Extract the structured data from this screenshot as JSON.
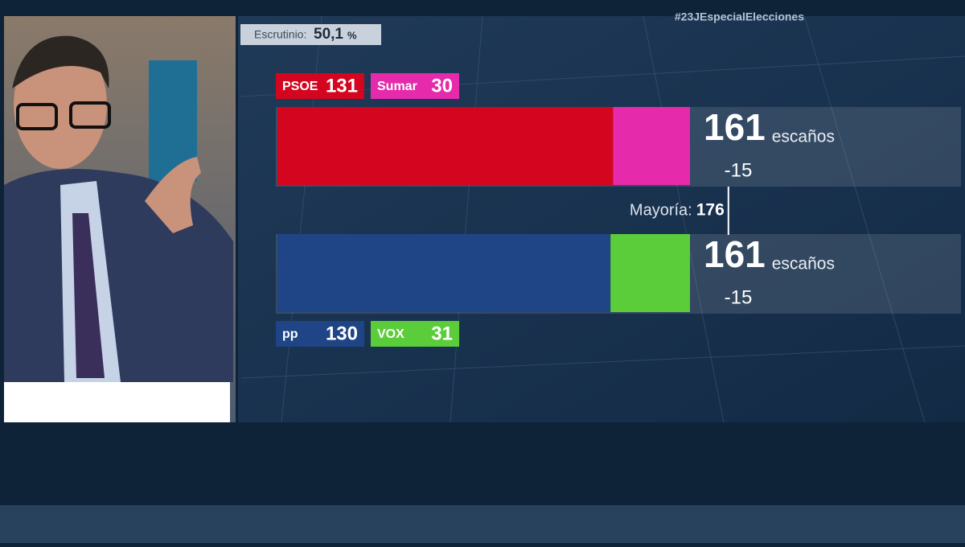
{
  "hashtag": "#23JEspecialElecciones",
  "chart_data": {
    "type": "bar",
    "orientation": "horizontal",
    "stacked": true,
    "scrutiny": {
      "label": "Escrutinio:",
      "value": 50.1,
      "value_label": "50,1",
      "unit": "%"
    },
    "rows": [
      {
        "series": [
          {
            "name": "PSOE",
            "value": 131,
            "color": "#d4051e"
          },
          {
            "name": "Sumar",
            "value": 30,
            "color": "#e52bab"
          }
        ],
        "total": 161,
        "total_unit": "escaños",
        "change": -15,
        "legend_position": "top"
      },
      {
        "series": [
          {
            "name": "pp",
            "value": 130,
            "color": "#1f4586"
          },
          {
            "name": "VOX",
            "value": 31,
            "color": "#5ccd3a"
          }
        ],
        "total": 161,
        "total_unit": "escaños",
        "change": -15,
        "legend_position": "bottom"
      }
    ],
    "majority_label": "Mayoría:",
    "majority": 176
  }
}
